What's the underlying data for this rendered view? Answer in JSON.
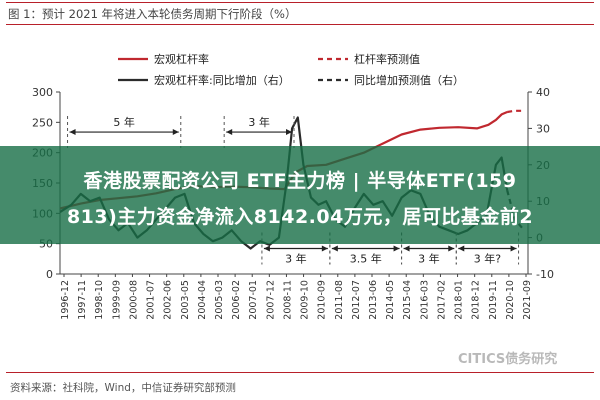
{
  "figure_title": "图 1：预计 2021 年将进入本轮债务周期下行阶段（%）",
  "source": "资料来源：社科院，Wind，中信证券研究部预测",
  "watermark": "CITICS债务研究",
  "banner": {
    "line1": "香港股票配资公司 ETF主力榜 | 半导体ETF(159",
    "line2": "813)主力资金净流入8142.04万元，居可比基金前2"
  },
  "colors": {
    "leverage": "#c0282f",
    "yoy": "#2b2b2b",
    "frame": "#b8202a"
  },
  "chart_data": {
    "type": "line",
    "legend": [
      {
        "label": "宏观杠杆率",
        "style": "solid-red"
      },
      {
        "label": "杠杆率预测值",
        "style": "dashed-red"
      },
      {
        "label": "宏观杠杆率:同比增加（右）",
        "style": "solid-black"
      },
      {
        "label": "同比增加预测值（右）",
        "style": "dashed-black"
      }
    ],
    "x_ticks": [
      "1996-12",
      "1997-11",
      "1998-10",
      "1999-09",
      "2000-08",
      "2001-07",
      "2002-06",
      "2003-05",
      "2004-04",
      "2005-03",
      "2006-02",
      "2007-01",
      "2007-12",
      "2008-11",
      "2009-10",
      "2010-09",
      "2011-08",
      "2012-07",
      "2013-06",
      "2014-05",
      "2015-04",
      "2016-03",
      "2017-02",
      "2018-01",
      "2018-12",
      "2019-11",
      "2020-10",
      "2021-09"
    ],
    "xlim": [
      1996.9,
      2021.7
    ],
    "y_left": {
      "min": 0,
      "max": 300,
      "ticks": [
        0,
        50,
        100,
        150,
        200,
        250,
        300
      ]
    },
    "y_right": {
      "min": -10,
      "max": 40,
      "ticks": [
        -10,
        0,
        10,
        20,
        30,
        40
      ]
    },
    "grid": false,
    "series": [
      {
        "name": "宏观杠杆率",
        "axis": "left",
        "dashed": false,
        "x": [
          1996.9,
          1998,
          1999,
          2000,
          2001,
          2002,
          2003,
          2004,
          2005,
          2006,
          2007,
          2008,
          2008.8,
          2009.4,
          2010,
          2011,
          2012,
          2013,
          2014,
          2015,
          2016,
          2017,
          2018,
          2019,
          2019.6,
          2020,
          2020.3,
          2020.6
        ],
        "y": [
          108,
          116,
          122,
          125,
          128,
          133,
          140,
          145,
          143,
          144,
          143,
          141,
          140,
          168,
          178,
          180,
          190,
          200,
          215,
          230,
          238,
          241,
          242,
          240,
          246,
          254,
          263,
          267
        ]
      },
      {
        "name": "杠杆率预测值",
        "axis": "left",
        "dashed": true,
        "x": [
          2020.6,
          2021,
          2021.5
        ],
        "y": [
          267,
          269,
          269
        ]
      },
      {
        "name": "宏观杠杆率:同比增加（右）",
        "axis": "right",
        "dashed": false,
        "x": [
          1996.9,
          1997.5,
          1998,
          1998.5,
          1999,
          1999.5,
          2000,
          2000.5,
          2001,
          2001.5,
          2002,
          2002.5,
          2003,
          2003.5,
          2004,
          2004.5,
          2005,
          2005.5,
          2006,
          2006.5,
          2007,
          2007.5,
          2008,
          2008.5,
          2008.9,
          2009.2,
          2009.5,
          2009.8,
          2010.2,
          2010.6,
          2011,
          2011.5,
          2012,
          2012.5,
          2013,
          2013.5,
          2014,
          2014.5,
          2015,
          2015.5,
          2016,
          2016.5,
          2017,
          2017.5,
          2018,
          2018.5,
          2019,
          2019.5,
          2020,
          2020.3,
          2020.6
        ],
        "y": [
          7,
          9,
          12,
          10,
          11,
          5,
          2,
          4,
          0,
          2,
          5,
          8,
          11,
          12,
          4,
          1,
          -1,
          0,
          2,
          -1,
          -3,
          -1,
          -2,
          0,
          15,
          30,
          33,
          20,
          11,
          9,
          10,
          5,
          3,
          8,
          12,
          9,
          10,
          6,
          11,
          13,
          12,
          6,
          3,
          2,
          1,
          2,
          4,
          6,
          20,
          22,
          13
        ]
      },
      {
        "name": "同比增加预测值（右）",
        "axis": "right",
        "dashed": true,
        "x": [
          2020.6,
          2021,
          2021.5
        ],
        "y": [
          13,
          5,
          2
        ]
      }
    ],
    "annotations": [
      {
        "text": "5 年",
        "x1": 1997.3,
        "x2": 2003.3,
        "y_right": 29,
        "row": "top"
      },
      {
        "text": "3 年",
        "x1": 2005.6,
        "x2": 2009.3,
        "y_right": 29,
        "row": "top"
      },
      {
        "text": "3 年",
        "x1": 2007.6,
        "x2": 2011.2,
        "y_right": -3,
        "row": "bottom"
      },
      {
        "text": "3.5 年",
        "x1": 2011.2,
        "x2": 2015.0,
        "y_right": -3,
        "row": "bottom"
      },
      {
        "text": "3 年",
        "x1": 2015.0,
        "x2": 2017.9,
        "y_right": -3,
        "row": "bottom"
      },
      {
        "text": "3 年?",
        "x1": 2017.9,
        "x2": 2021.2,
        "y_right": -3,
        "row": "bottom"
      }
    ]
  }
}
